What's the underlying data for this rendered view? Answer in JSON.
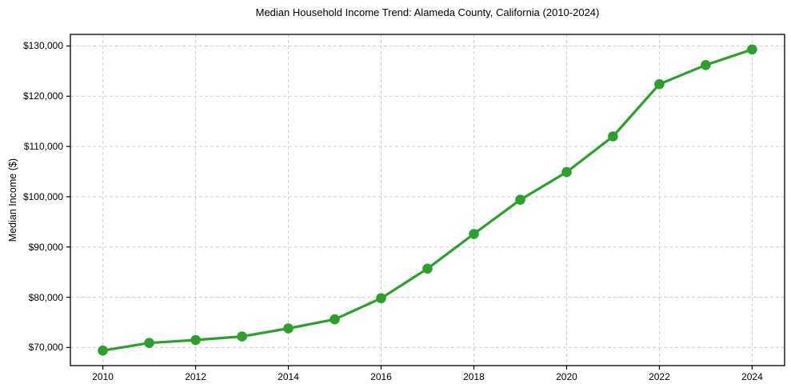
{
  "chart_data": {
    "type": "line",
    "title": "Median Household Income Trend: Alameda County, California (2010-2024)",
    "xlabel": "",
    "ylabel": "Median Income ($)",
    "x": [
      2010,
      2011,
      2012,
      2013,
      2014,
      2015,
      2016,
      2017,
      2018,
      2019,
      2020,
      2021,
      2022,
      2023,
      2024
    ],
    "values": [
      69400,
      70900,
      71500,
      72200,
      73800,
      75600,
      79800,
      85700,
      92600,
      99400,
      104900,
      112000,
      122400,
      126200,
      129300
    ],
    "xlim": [
      2009.3,
      2024.7
    ],
    "ylim": [
      66400,
      132300
    ],
    "xticks": {
      "values": [
        2010,
        2012,
        2014,
        2016,
        2018,
        2020,
        2022,
        2024
      ],
      "labels": [
        "2010",
        "2012",
        "2014",
        "2016",
        "2018",
        "2020",
        "2022",
        "2024"
      ]
    },
    "yticks": {
      "values": [
        70000,
        80000,
        90000,
        100000,
        110000,
        120000,
        130000
      ],
      "labels": [
        "$70,000",
        "$80,000",
        "$90,000",
        "$100,000",
        "$110,000",
        "$120,000",
        "$130,000"
      ]
    },
    "grid": true,
    "grid_style": "dashed",
    "legend": "none",
    "marker": "circle",
    "colors": {
      "line": "#2ca02c",
      "grid": "#cfcfcf",
      "spine": "#000000",
      "background": "#ffffff",
      "text": "#000000"
    }
  }
}
